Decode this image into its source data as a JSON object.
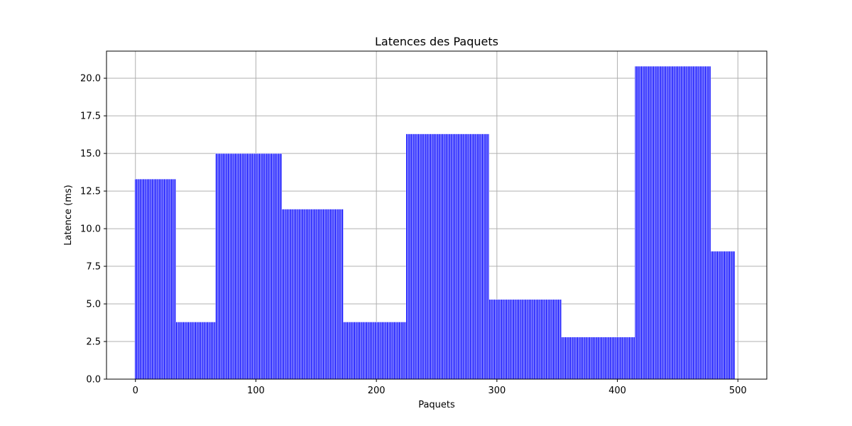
{
  "chart_data": {
    "type": "bar",
    "title": "Latences des Paquets",
    "xlabel": "Paquets",
    "ylabel": "Latence (ms)",
    "xlim": [
      -24,
      524
    ],
    "ylim": [
      0,
      21.8
    ],
    "grid": true,
    "bar_color": "#0000ff",
    "bar_edge_color": "#ffffff",
    "x_ticks": [
      0,
      100,
      200,
      300,
      400,
      500
    ],
    "x_tick_labels": [
      "0",
      "100",
      "200",
      "300",
      "400",
      "500"
    ],
    "y_ticks": [
      0,
      2.5,
      5,
      7.5,
      10,
      12.5,
      15,
      17.5,
      20
    ],
    "y_tick_labels": [
      "0.0",
      "2.5",
      "5.0",
      "7.5",
      "10.0",
      "12.5",
      "15.0",
      "17.5",
      "20.0"
    ],
    "segments": [
      {
        "x_start": 0,
        "x_end": 34,
        "value": 13.3
      },
      {
        "x_start": 34,
        "x_end": 67,
        "value": 3.8
      },
      {
        "x_start": 67,
        "x_end": 122,
        "value": 15.0
      },
      {
        "x_start": 122,
        "x_end": 173,
        "value": 11.3
      },
      {
        "x_start": 173,
        "x_end": 225,
        "value": 3.8
      },
      {
        "x_start": 225,
        "x_end": 294,
        "value": 16.3
      },
      {
        "x_start": 294,
        "x_end": 354,
        "value": 5.3
      },
      {
        "x_start": 354,
        "x_end": 415,
        "value": 2.8
      },
      {
        "x_start": 415,
        "x_end": 478,
        "value": 20.8
      },
      {
        "x_start": 478,
        "x_end": 498,
        "value": 8.5
      }
    ]
  }
}
